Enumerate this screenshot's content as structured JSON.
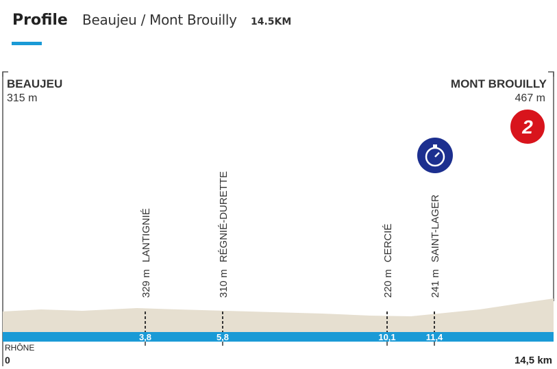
{
  "header": {
    "title": "Profile",
    "route": "Beaujeu / Mont Brouilly",
    "distance": "14.5KM"
  },
  "start": {
    "name": "BEAUJEU",
    "altitude": "315 m",
    "km": "0"
  },
  "finish": {
    "name": "MONT BROUILLY",
    "altitude": "467 m",
    "km": "14,5 km"
  },
  "climb_category": "2",
  "river": "RHÔNE",
  "waypoints": [
    {
      "name": "LANTIGNIÉ",
      "altitude": "329 m",
      "km": "3,8"
    },
    {
      "name": "RÉGNIÉ-DURETTE",
      "altitude": "310 m",
      "km": "5,8"
    },
    {
      "name": "CERCIÉ",
      "altitude": "220 m",
      "km": "10,1"
    },
    {
      "name": "SAINT-LAGER",
      "altitude": "241 m",
      "km": "11,4"
    }
  ]
}
